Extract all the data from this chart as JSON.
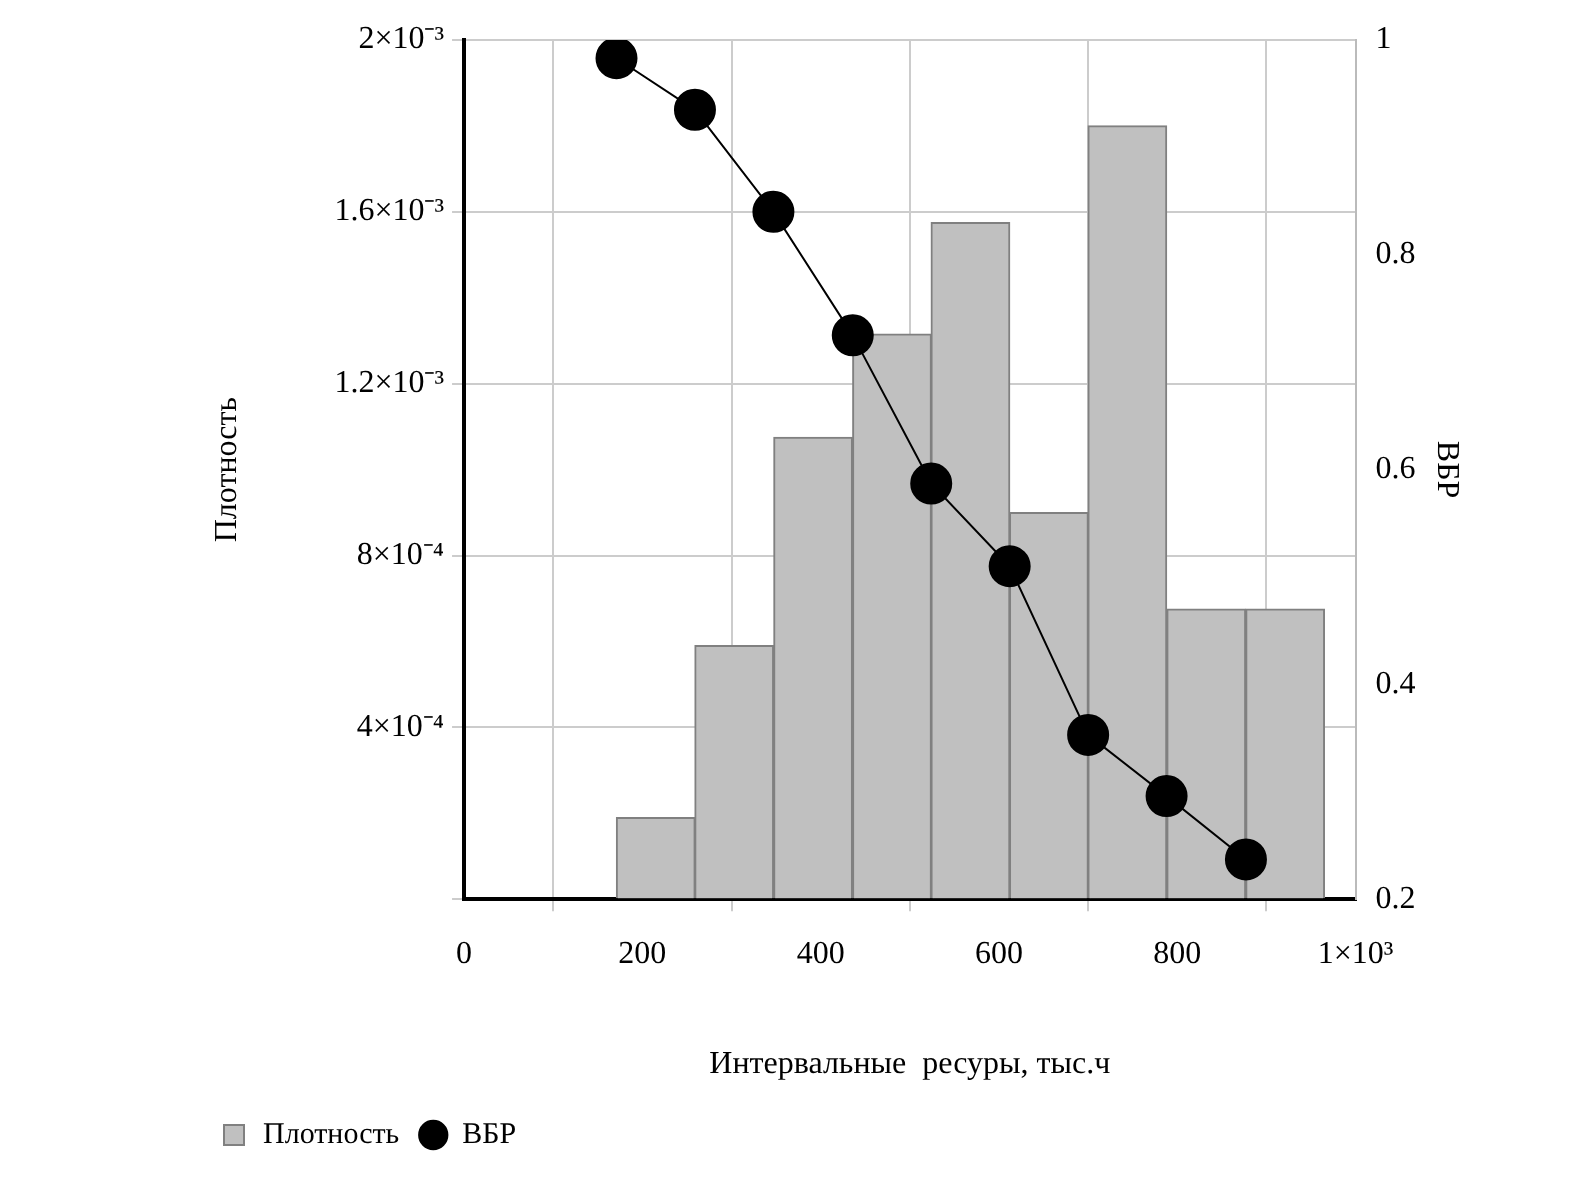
{
  "chart_data": {
    "type": "histogram",
    "xlabel": "Интервальные  ресуры, тыс.ч",
    "ylabel": "Плотность",
    "y2label": "ВБР",
    "bins": [
      171,
      259,
      347,
      436,
      524,
      612,
      700,
      788,
      877,
      965
    ],
    "series": [
      {
        "name": "Плотность",
        "color": "#c0c0c0",
        "values": [
          0.00019,
          0.00059,
          0.001075,
          0.001315,
          0.001575,
          0.0009,
          0.0018,
          0.000675,
          0.000675
        ]
      },
      {
        "name": "ВБР",
        "type": "line",
        "axis": "y2",
        "color": "#000000",
        "marker": "circle",
        "x": [
          171,
          259,
          347,
          436,
          524,
          612,
          700,
          788,
          877
        ],
        "values": [
          0.983,
          0.935,
          0.84,
          0.725,
          0.587,
          0.51,
          0.353,
          0.296,
          0.237
        ]
      }
    ],
    "xlim": [
      0,
      1000
    ],
    "xticks": [
      0,
      200,
      400,
      600,
      800,
      {
        "value": 1000,
        "label": "1×10³"
      }
    ],
    "ylim": [
      0,
      0.002
    ],
    "yticks": [
      {
        "value": 0,
        "label": null
      },
      {
        "value": 0.0004,
        "label": "4×10⁻⁴"
      },
      {
        "value": 0.0008,
        "label": "8×10⁻⁴"
      },
      {
        "value": 0.0012,
        "label": "1.2×10⁻³"
      },
      {
        "value": 0.0016,
        "label": "1.6×10⁻³"
      },
      {
        "value": 0.002,
        "label": "2×10⁻³"
      }
    ],
    "y2lim": [
      0.2,
      1
    ],
    "y2ticks": [
      0.2,
      0.4,
      0.6,
      0.8,
      1
    ],
    "grid": true,
    "legend": "bottom left"
  }
}
